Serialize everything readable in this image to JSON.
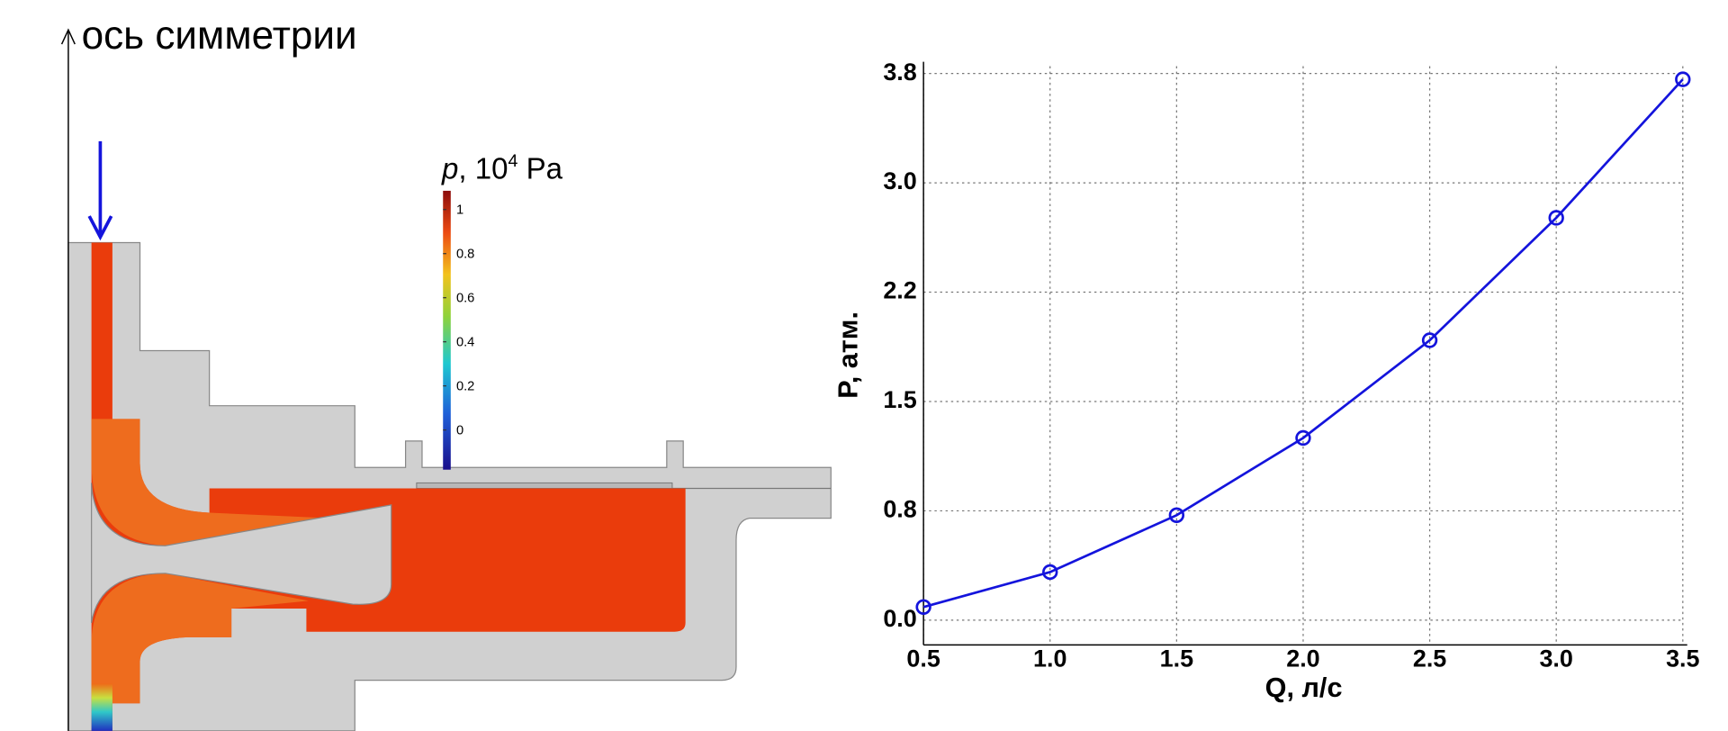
{
  "diagram": {
    "axis_label": "ось симметрии",
    "colorbar": {
      "title_parts": [
        "p",
        ", 10",
        "4",
        " Pa"
      ],
      "ticks": [
        "1",
        "0.8",
        "0.6",
        "0.4",
        "0.2",
        "0"
      ]
    }
  },
  "chart_data": {
    "type": "line",
    "x": [
      0.5,
      1.0,
      1.5,
      2.0,
      2.5,
      3.0,
      3.5
    ],
    "values": [
      0.09,
      0.33,
      0.72,
      1.25,
      1.92,
      2.76,
      3.71
    ],
    "color": "#1414dc",
    "xlabel": "Q, л/с",
    "ylabel": "P, атм.",
    "xlim": [
      0.5,
      3.5
    ],
    "xticks": [
      0.5,
      {
        "value": 1.0,
        "label": "1.0"
      },
      1.5,
      {
        "value": 2.0,
        "label": "2.0"
      },
      2.5,
      {
        "value": 3.0,
        "label": "3.0"
      },
      3.5
    ],
    "ylim": [
      -0.17,
      3.8
    ],
    "yticks": [
      {
        "value": 0,
        "label": "0.0"
      },
      {
        "value": 0.75,
        "label": "0.8"
      },
      1.5,
      {
        "value": 2.25,
        "label": "2.2"
      },
      {
        "value": 3.0,
        "label": "3.0"
      },
      {
        "value": 3.75,
        "label": "3.8"
      }
    ],
    "grid": true
  }
}
